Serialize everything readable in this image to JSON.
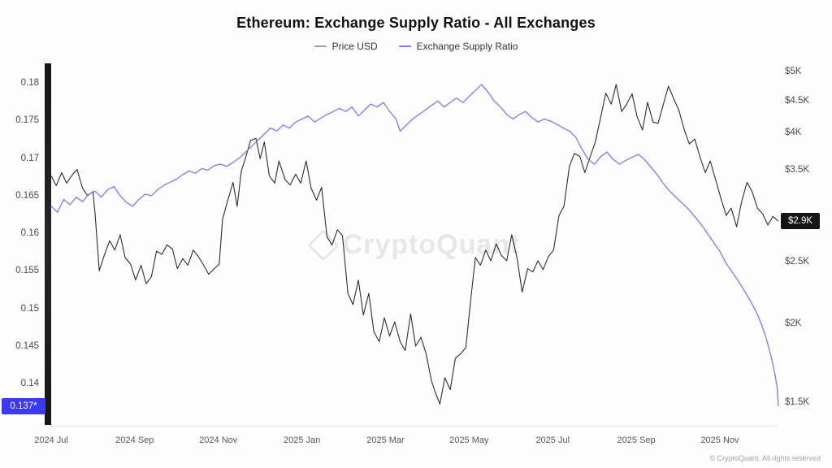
{
  "chart_data": {
    "type": "line",
    "title": "Ethereum: Exchange Supply Ratio - All Exchanges",
    "watermark": "CryptoQuant",
    "footer": "© CryptoQuant. All rights reserved",
    "legend_position": "top-center",
    "grid": false,
    "x_axis": {
      "tick_labels": [
        "2024 Jul",
        "2024 Sep",
        "2024 Nov",
        "2025 Jan",
        "2025 Mar",
        "2025 May",
        "2025 Jul",
        "2025 Sep",
        "2025 Nov"
      ],
      "tick_t": [
        0,
        2,
        4,
        6,
        8,
        10,
        12,
        14,
        16
      ],
      "t_min": 0,
      "t_max": 17.4
    },
    "y_left": {
      "series": "Exchange Supply Ratio",
      "scale": "linear",
      "domain": [
        0.1345,
        0.1826
      ],
      "ticks": [
        0.18,
        0.175,
        0.17,
        0.165,
        0.16,
        0.155,
        0.15,
        0.145,
        0.14
      ],
      "tick_labels": [
        "0.18",
        "0.175",
        "0.17",
        "0.165",
        "0.16",
        "0.155",
        "0.15",
        "0.145",
        "0.14"
      ],
      "last_value": 0.137,
      "last_label": "0.137*",
      "badge_color": "#3a3af0"
    },
    "y_right": {
      "series": "Price USD",
      "scale": "log",
      "domain": [
        1381,
        5150
      ],
      "ticks": [
        5000,
        4500,
        4000,
        3500,
        2500,
        2000,
        1500
      ],
      "tick_labels": [
        "$5K",
        "$4.5K",
        "$4K",
        "$3.5K",
        "$2.5K",
        "$2K",
        "$1.5K"
      ],
      "last_value": 2900,
      "last_label": "$2.9K",
      "badge_color": "#141414"
    },
    "legend": [
      {
        "label": "Price USD",
        "color": "#9a9a9a"
      },
      {
        "label": "Exchange Supply Ratio",
        "color": "#7b7de6"
      }
    ],
    "series": [
      {
        "name": "Price USD",
        "axis": "right",
        "color": "#2d2d2d",
        "width": 1.1,
        "points": [
          [
            0,
            3420
          ],
          [
            0.12,
            3300
          ],
          [
            0.25,
            3460
          ],
          [
            0.37,
            3330
          ],
          [
            0.5,
            3430
          ],
          [
            0.62,
            3500
          ],
          [
            0.75,
            3270
          ],
          [
            0.87,
            3180
          ],
          [
            1.0,
            3230
          ],
          [
            1.05,
            2980
          ],
          [
            1.15,
            2420
          ],
          [
            1.27,
            2560
          ],
          [
            1.4,
            2700
          ],
          [
            1.52,
            2610
          ],
          [
            1.65,
            2760
          ],
          [
            1.77,
            2540
          ],
          [
            1.9,
            2480
          ],
          [
            2.02,
            2340
          ],
          [
            2.15,
            2470
          ],
          [
            2.27,
            2310
          ],
          [
            2.4,
            2370
          ],
          [
            2.52,
            2600
          ],
          [
            2.65,
            2570
          ],
          [
            2.77,
            2660
          ],
          [
            2.9,
            2620
          ],
          [
            3.02,
            2440
          ],
          [
            3.15,
            2530
          ],
          [
            3.27,
            2470
          ],
          [
            3.4,
            2610
          ],
          [
            3.52,
            2550
          ],
          [
            3.65,
            2470
          ],
          [
            3.77,
            2390
          ],
          [
            3.9,
            2440
          ],
          [
            4.02,
            2480
          ],
          [
            4.1,
            2920
          ],
          [
            4.22,
            3120
          ],
          [
            4.35,
            3340
          ],
          [
            4.45,
            3060
          ],
          [
            4.55,
            3480
          ],
          [
            4.65,
            3650
          ],
          [
            4.77,
            3890
          ],
          [
            4.9,
            3920
          ],
          [
            5.0,
            3640
          ],
          [
            5.1,
            3870
          ],
          [
            5.22,
            3420
          ],
          [
            5.35,
            3330
          ],
          [
            5.45,
            3610
          ],
          [
            5.6,
            3370
          ],
          [
            5.72,
            3310
          ],
          [
            5.85,
            3440
          ],
          [
            5.97,
            3330
          ],
          [
            6.1,
            3610
          ],
          [
            6.22,
            3270
          ],
          [
            6.35,
            3130
          ],
          [
            6.47,
            3280
          ],
          [
            6.6,
            2740
          ],
          [
            6.72,
            2660
          ],
          [
            6.85,
            2810
          ],
          [
            6.97,
            2750
          ],
          [
            7.1,
            2230
          ],
          [
            7.22,
            2140
          ],
          [
            7.35,
            2340
          ],
          [
            7.47,
            2060
          ],
          [
            7.6,
            2230
          ],
          [
            7.72,
            1940
          ],
          [
            7.85,
            1870
          ],
          [
            7.97,
            2040
          ],
          [
            8.1,
            1910
          ],
          [
            8.22,
            2010
          ],
          [
            8.35,
            1870
          ],
          [
            8.47,
            1810
          ],
          [
            8.6,
            2070
          ],
          [
            8.72,
            1840
          ],
          [
            8.85,
            1900
          ],
          [
            8.97,
            1790
          ],
          [
            9.1,
            1620
          ],
          [
            9.2,
            1550
          ],
          [
            9.3,
            1490
          ],
          [
            9.42,
            1640
          ],
          [
            9.55,
            1570
          ],
          [
            9.67,
            1760
          ],
          [
            9.8,
            1790
          ],
          [
            9.92,
            1830
          ],
          [
            10.05,
            2210
          ],
          [
            10.15,
            2540
          ],
          [
            10.27,
            2470
          ],
          [
            10.4,
            2610
          ],
          [
            10.52,
            2510
          ],
          [
            10.65,
            2670
          ],
          [
            10.77,
            2560
          ],
          [
            10.9,
            2510
          ],
          [
            11.02,
            2760
          ],
          [
            11.15,
            2530
          ],
          [
            11.27,
            2240
          ],
          [
            11.4,
            2440
          ],
          [
            11.52,
            2410
          ],
          [
            11.65,
            2510
          ],
          [
            11.77,
            2430
          ],
          [
            11.9,
            2550
          ],
          [
            12.02,
            2610
          ],
          [
            12.15,
            2960
          ],
          [
            12.27,
            3060
          ],
          [
            12.4,
            3540
          ],
          [
            12.52,
            3710
          ],
          [
            12.65,
            3670
          ],
          [
            12.77,
            3460
          ],
          [
            12.9,
            3670
          ],
          [
            13.02,
            3870
          ],
          [
            13.15,
            4240
          ],
          [
            13.27,
            4620
          ],
          [
            13.4,
            4440
          ],
          [
            13.52,
            4770
          ],
          [
            13.65,
            4320
          ],
          [
            13.77,
            4440
          ],
          [
            13.9,
            4610
          ],
          [
            14.02,
            4240
          ],
          [
            14.15,
            4040
          ],
          [
            14.27,
            4470
          ],
          [
            14.4,
            4160
          ],
          [
            14.52,
            4140
          ],
          [
            14.65,
            4440
          ],
          [
            14.77,
            4740
          ],
          [
            14.9,
            4520
          ],
          [
            15.02,
            4340
          ],
          [
            15.15,
            4040
          ],
          [
            15.27,
            3840
          ],
          [
            15.4,
            3910
          ],
          [
            15.52,
            3670
          ],
          [
            15.65,
            3460
          ],
          [
            15.77,
            3610
          ],
          [
            15.9,
            3370
          ],
          [
            16.02,
            3160
          ],
          [
            16.15,
            2960
          ],
          [
            16.27,
            3040
          ],
          [
            16.4,
            2840
          ],
          [
            16.52,
            3110
          ],
          [
            16.65,
            3340
          ],
          [
            16.77,
            3230
          ],
          [
            16.9,
            3040
          ],
          [
            17.02,
            2980
          ],
          [
            17.15,
            2860
          ],
          [
            17.27,
            2950
          ],
          [
            17.4,
            2900
          ]
        ]
      },
      {
        "name": "Exchange Supply Ratio",
        "axis": "left",
        "color": "#7b7de6",
        "width": 1.3,
        "points": [
          [
            0,
            0.1636
          ],
          [
            0.15,
            0.1628
          ],
          [
            0.3,
            0.1645
          ],
          [
            0.45,
            0.1638
          ],
          [
            0.6,
            0.1648
          ],
          [
            0.75,
            0.1642
          ],
          [
            0.9,
            0.1652
          ],
          [
            1.05,
            0.1656
          ],
          [
            1.2,
            0.1648
          ],
          [
            1.35,
            0.1658
          ],
          [
            1.5,
            0.1662
          ],
          [
            1.65,
            0.165
          ],
          [
            1.8,
            0.1641
          ],
          [
            1.95,
            0.1636
          ],
          [
            2.1,
            0.1645
          ],
          [
            2.25,
            0.1652
          ],
          [
            2.4,
            0.165
          ],
          [
            2.55,
            0.1658
          ],
          [
            2.7,
            0.1664
          ],
          [
            2.85,
            0.1668
          ],
          [
            3.0,
            0.1672
          ],
          [
            3.15,
            0.1678
          ],
          [
            3.3,
            0.1683
          ],
          [
            3.45,
            0.168
          ],
          [
            3.6,
            0.1686
          ],
          [
            3.75,
            0.1684
          ],
          [
            3.9,
            0.169
          ],
          [
            4.05,
            0.1692
          ],
          [
            4.2,
            0.1689
          ],
          [
            4.35,
            0.1694
          ],
          [
            4.5,
            0.17
          ],
          [
            4.65,
            0.1708
          ],
          [
            4.8,
            0.1716
          ],
          [
            4.95,
            0.1724
          ],
          [
            5.1,
            0.1732
          ],
          [
            5.25,
            0.174
          ],
          [
            5.4,
            0.1736
          ],
          [
            5.55,
            0.1744
          ],
          [
            5.7,
            0.174
          ],
          [
            5.85,
            0.1748
          ],
          [
            6.0,
            0.1752
          ],
          [
            6.15,
            0.1756
          ],
          [
            6.3,
            0.1748
          ],
          [
            6.45,
            0.1753
          ],
          [
            6.6,
            0.1758
          ],
          [
            6.75,
            0.1762
          ],
          [
            6.9,
            0.1766
          ],
          [
            7.05,
            0.1762
          ],
          [
            7.2,
            0.1768
          ],
          [
            7.35,
            0.1756
          ],
          [
            7.5,
            0.1764
          ],
          [
            7.65,
            0.1772
          ],
          [
            7.8,
            0.1768
          ],
          [
            7.95,
            0.1774
          ],
          [
            8.1,
            0.1762
          ],
          [
            8.25,
            0.1752
          ],
          [
            8.35,
            0.1736
          ],
          [
            8.5,
            0.1744
          ],
          [
            8.65,
            0.1752
          ],
          [
            8.8,
            0.1758
          ],
          [
            8.95,
            0.1764
          ],
          [
            9.1,
            0.177
          ],
          [
            9.25,
            0.1776
          ],
          [
            9.4,
            0.1768
          ],
          [
            9.55,
            0.1774
          ],
          [
            9.7,
            0.178
          ],
          [
            9.85,
            0.1774
          ],
          [
            10.0,
            0.1782
          ],
          [
            10.15,
            0.179
          ],
          [
            10.3,
            0.1798
          ],
          [
            10.45,
            0.1788
          ],
          [
            10.6,
            0.1776
          ],
          [
            10.75,
            0.1768
          ],
          [
            10.9,
            0.1758
          ],
          [
            11.05,
            0.1752
          ],
          [
            11.2,
            0.1758
          ],
          [
            11.35,
            0.1762
          ],
          [
            11.5,
            0.1754
          ],
          [
            11.65,
            0.1748
          ],
          [
            11.8,
            0.1752
          ],
          [
            11.95,
            0.1749
          ],
          [
            12.1,
            0.1745
          ],
          [
            12.25,
            0.174
          ],
          [
            12.4,
            0.1736
          ],
          [
            12.55,
            0.1728
          ],
          [
            12.7,
            0.1712
          ],
          [
            12.85,
            0.1698
          ],
          [
            13.0,
            0.1692
          ],
          [
            13.15,
            0.1702
          ],
          [
            13.3,
            0.1708
          ],
          [
            13.45,
            0.1698
          ],
          [
            13.6,
            0.1692
          ],
          [
            13.75,
            0.1697
          ],
          [
            13.9,
            0.1701
          ],
          [
            14.05,
            0.1705
          ],
          [
            14.2,
            0.1698
          ],
          [
            14.35,
            0.1688
          ],
          [
            14.5,
            0.1678
          ],
          [
            14.65,
            0.1666
          ],
          [
            14.8,
            0.1656
          ],
          [
            14.95,
            0.1648
          ],
          [
            15.1,
            0.164
          ],
          [
            15.25,
            0.1632
          ],
          [
            15.4,
            0.1622
          ],
          [
            15.55,
            0.1612
          ],
          [
            15.7,
            0.16
          ],
          [
            15.85,
            0.1588
          ],
          [
            16.0,
            0.1576
          ],
          [
            16.15,
            0.156
          ],
          [
            16.3,
            0.1548
          ],
          [
            16.45,
            0.1536
          ],
          [
            16.6,
            0.1522
          ],
          [
            16.75,
            0.1508
          ],
          [
            16.9,
            0.1492
          ],
          [
            17.0,
            0.1478
          ],
          [
            17.1,
            0.1462
          ],
          [
            17.18,
            0.1446
          ],
          [
            17.26,
            0.1428
          ],
          [
            17.32,
            0.1412
          ],
          [
            17.37,
            0.1395
          ],
          [
            17.4,
            0.137
          ]
        ]
      }
    ]
  }
}
